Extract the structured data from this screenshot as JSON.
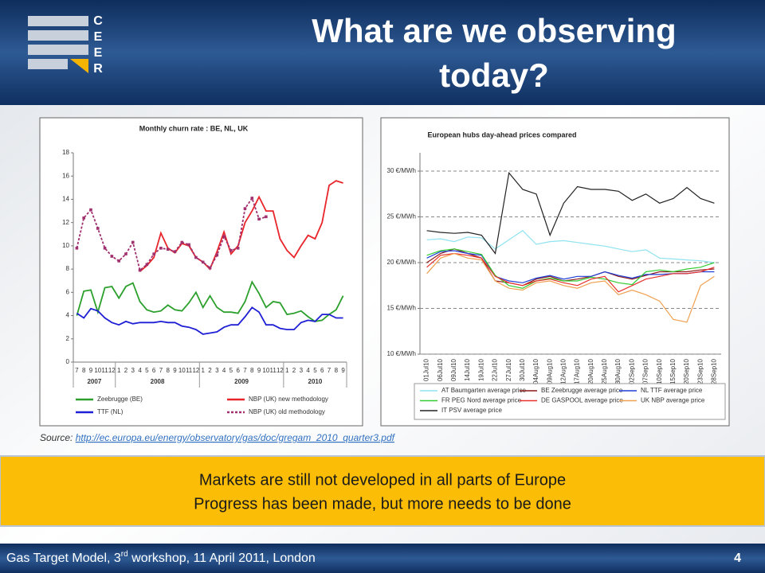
{
  "header": {
    "title_lines": [
      "What are we observing",
      "today?"
    ],
    "logo_letters": [
      "C",
      "E",
      "E",
      "R"
    ]
  },
  "chart_data": [
    {
      "type": "line",
      "title": "Monthly churn rate : BE, NL, UK",
      "categories": [
        "7",
        "8",
        "9",
        "10",
        "11",
        "12",
        "1",
        "2",
        "3",
        "4",
        "5",
        "6",
        "7",
        "8",
        "9",
        "10",
        "11",
        "12",
        "1",
        "2",
        "3",
        "4",
        "5",
        "6",
        "7",
        "8",
        "9",
        "10",
        "11",
        "12",
        "1",
        "2",
        "3",
        "4",
        "5",
        "6",
        "7",
        "8",
        "9"
      ],
      "years": [
        "2007",
        "2008",
        "2009",
        "2010"
      ],
      "ylim": [
        0,
        18
      ],
      "yticks": [
        0,
        2,
        4,
        6,
        8,
        10,
        12,
        14,
        16,
        18
      ],
      "series": [
        {
          "name": "Zeebrugge (BE)",
          "color": "#2ca02c",
          "values": [
            4,
            6.1,
            6.2,
            4.3,
            6.4,
            6.5,
            5.5,
            6.5,
            6.8,
            5.2,
            4.5,
            4.3,
            4.4,
            4.9,
            4.5,
            4.4,
            5.1,
            6.0,
            4.7,
            5.7,
            4.7,
            4.3,
            4.3,
            4.2,
            5.2,
            6.9,
            5.9,
            4.7,
            5.2,
            5.1,
            4.1,
            4.2,
            4.4,
            3.9,
            3.5,
            3.6,
            4.1,
            4.5,
            5.7
          ]
        },
        {
          "name": "NBP (UK) new methodology",
          "color": "#e8252b",
          "values": [
            null,
            null,
            null,
            null,
            null,
            null,
            null,
            null,
            null,
            7.8,
            8.3,
            9.0,
            11.1,
            9.8,
            9.4,
            10.2,
            10.0,
            9.0,
            8.6,
            8.0,
            9.5,
            11.2,
            9.3,
            10.0,
            12.0,
            13.0,
            14.2,
            13.0,
            13.0,
            10.6,
            9.6,
            9.0,
            10.0,
            10.9,
            10.6,
            12.0,
            15.2,
            15.6,
            15.4
          ]
        },
        {
          "name": "TTF (NL)",
          "color": "#1f1fd6",
          "values": [
            4.2,
            3.8,
            4.6,
            4.4,
            3.8,
            3.4,
            3.2,
            3.5,
            3.3,
            3.4,
            3.4,
            3.4,
            3.5,
            3.4,
            3.4,
            3.1,
            3.0,
            2.8,
            2.4,
            2.5,
            2.6,
            3.0,
            3.2,
            3.2,
            3.9,
            4.7,
            4.3,
            3.2,
            3.2,
            2.9,
            2.8,
            2.8,
            3.4,
            3.6,
            3.5,
            4.1,
            4.1,
            3.8,
            3.8
          ]
        },
        {
          "name": "NBP (UK) old methodology",
          "color": "#a0306e",
          "dashed": true,
          "markers": true,
          "values": [
            9.8,
            12.4,
            13.1,
            11.5,
            9.8,
            9.1,
            8.7,
            9.3,
            10.3,
            7.9,
            8.4,
            9.3,
            9.8,
            9.7,
            9.5,
            10.3,
            10.1,
            9.0,
            8.6,
            8.1,
            9.2,
            10.8,
            9.6,
            9.8,
            13.2,
            14.1,
            12.3,
            12.5,
            null,
            null,
            null,
            null,
            null,
            null,
            null,
            null,
            null,
            null,
            null
          ]
        }
      ]
    },
    {
      "type": "line",
      "title": "European hubs day-ahead prices compared",
      "categories": [
        "01Jul10",
        "06Jul10",
        "09Jul10",
        "14Jul10",
        "19Jul10",
        "22Jul10",
        "27Jul10",
        "30Jul10",
        "04Aug10",
        "09Aug10",
        "12Aug10",
        "17Aug10",
        "20Aug10",
        "25Aug10",
        "30Aug10",
        "02Sep10",
        "07Sep10",
        "10Sep10",
        "15Sep10",
        "20Sep10",
        "23Sep10",
        "28Sep10"
      ],
      "ylim": [
        10,
        32
      ],
      "yticks": [
        {
          "value": 10,
          "label": "10 €/MWh"
        },
        {
          "value": 15,
          "label": "15 €/MWh"
        },
        {
          "value": 20,
          "label": "20 €/MWh"
        },
        {
          "value": 25,
          "label": "25 €/MWh"
        },
        {
          "value": 30,
          "label": "30 €/MWh"
        }
      ],
      "grid": true,
      "series": [
        {
          "name": "AT Baumgarten average price",
          "color": "#8fe3f0",
          "values": [
            22.5,
            22.6,
            22.3,
            22.8,
            22.7,
            21.5,
            22.5,
            23.5,
            22.0,
            22.3,
            22.4,
            22.2,
            22.0,
            21.8,
            21.5,
            21.2,
            21.4,
            20.5,
            20.4,
            20.3,
            20.2,
            20.0
          ]
        },
        {
          "name": "BE Zeebrugge average price",
          "color": "#8b1a1a",
          "values": [
            20.0,
            21.0,
            21.5,
            21.0,
            20.5,
            18.0,
            17.8,
            17.5,
            18.2,
            18.5,
            18.0,
            18.2,
            18.5,
            19.0,
            18.5,
            18.2,
            18.6,
            19.0,
            19.0,
            19.0,
            19.2,
            19.3
          ]
        },
        {
          "name": "NL TTF average price",
          "color": "#1f3fd6",
          "values": [
            20.5,
            21.2,
            21.3,
            21.0,
            20.8,
            18.5,
            18.0,
            17.8,
            18.3,
            18.6,
            18.2,
            18.5,
            18.5,
            19.0,
            18.6,
            18.3,
            18.7,
            18.7,
            18.8,
            18.8,
            19.0,
            19.0
          ]
        },
        {
          "name": "FR PEG Nord average price",
          "color": "#33cc33",
          "values": [
            20.8,
            21.3,
            21.5,
            21.2,
            20.9,
            18.6,
            17.5,
            17.2,
            18.0,
            18.3,
            18.0,
            18.0,
            18.4,
            18.2,
            17.8,
            17.6,
            19.0,
            19.2,
            19.0,
            19.3,
            19.5,
            20.0
          ]
        },
        {
          "name": "DE GASPOOL average price",
          "color": "#e8302b",
          "values": [
            19.5,
            20.8,
            21.0,
            20.8,
            20.5,
            18.5,
            17.8,
            17.5,
            18.0,
            18.2,
            17.8,
            17.5,
            18.2,
            18.5,
            16.8,
            17.5,
            18.2,
            18.5,
            18.8,
            18.8,
            19.0,
            19.5
          ]
        },
        {
          "name": "UK  NBP average price",
          "color": "#f0a050",
          "values": [
            18.8,
            20.5,
            21.0,
            20.5,
            20.3,
            18.0,
            17.2,
            17.0,
            17.8,
            18.0,
            17.5,
            17.2,
            17.8,
            18.0,
            16.5,
            17.0,
            16.5,
            15.8,
            13.8,
            13.5,
            17.5,
            18.5
          ]
        },
        {
          "name": "IT PSV average price",
          "color": "#222222",
          "values": [
            23.5,
            23.3,
            23.2,
            23.3,
            23.0,
            21.0,
            29.8,
            28.0,
            27.5,
            23.0,
            26.5,
            28.3,
            28.0,
            28.0,
            27.8,
            26.8,
            27.5,
            26.5,
            27.0,
            28.2,
            27.0,
            26.5
          ]
        }
      ]
    }
  ],
  "source": {
    "prefix": "Source: ",
    "link": "http://ec.europa.eu/energy/observatory/gas/doc/gregam_2010_quarter3.pdf"
  },
  "callout": [
    "Markets are still not developed in all parts of Europe",
    "Progress has been made, but more needs to be done"
  ],
  "footer": {
    "text_parts": [
      "Gas Target Model, 3",
      "rd",
      " workshop, 11 April 2011, London"
    ],
    "page": "4"
  }
}
